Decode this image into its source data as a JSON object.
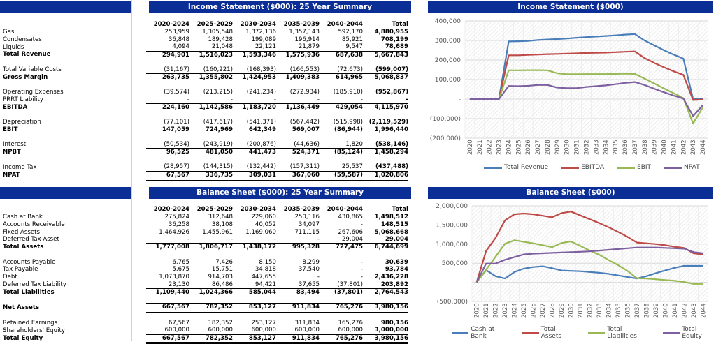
{
  "income": {
    "title": "Income Statement ($000): 25 Year Summary",
    "columns": [
      "2020-2024",
      "2025-2029",
      "2030-2034",
      "2035-2039",
      "2040-2044",
      "Total"
    ],
    "rows": [
      {
        "label": "Gas",
        "values": [
          "253,959",
          "1,305,548",
          "1,372,136",
          "1,357,143",
          "592,170",
          "4,880,955"
        ],
        "kind": "line"
      },
      {
        "label": "Condensates",
        "values": [
          "36,848",
          "189,428",
          "199,089",
          "196,914",
          "85,921",
          "708,199"
        ],
        "kind": "line"
      },
      {
        "label": "Liquids",
        "values": [
          "4,094",
          "21,048",
          "22,121",
          "21,879",
          "9,547",
          "78,689"
        ],
        "kind": "line"
      },
      {
        "label": "Total Revenue",
        "values": [
          "294,901",
          "1,516,023",
          "1,593,346",
          "1,575,936",
          "687,638",
          "5,667,843"
        ],
        "kind": "total"
      },
      {
        "label": "",
        "values": [
          "",
          "",
          "",
          "",
          "",
          ""
        ],
        "kind": "blank"
      },
      {
        "label": "Total Variable Costs",
        "values": [
          "(31,167)",
          "(160,221)",
          "(168,393)",
          "(166,553)",
          "(72,673)",
          "(599,007)"
        ],
        "kind": "line"
      },
      {
        "label": "Gross Margin",
        "values": [
          "263,735",
          "1,355,802",
          "1,424,953",
          "1,409,383",
          "614,965",
          "5,068,837"
        ],
        "kind": "total"
      },
      {
        "label": "",
        "values": [
          "",
          "",
          "",
          "",
          "",
          ""
        ],
        "kind": "blank"
      },
      {
        "label": "Operating Expenses",
        "values": [
          "(39,574)",
          "(213,215)",
          "(241,234)",
          "(272,934)",
          "(185,910)",
          "(952,867)"
        ],
        "kind": "line"
      },
      {
        "label": "PRRT Liability",
        "values": [
          "-",
          "-",
          "-",
          "-",
          "-",
          "-"
        ],
        "kind": "line"
      },
      {
        "label": "EBITDA",
        "values": [
          "224,160",
          "1,142,586",
          "1,183,720",
          "1,136,449",
          "429,054",
          "4,115,970"
        ],
        "kind": "total"
      },
      {
        "label": "",
        "values": [
          "",
          "",
          "",
          "",
          "",
          ""
        ],
        "kind": "blank"
      },
      {
        "label": "Depreciation",
        "values": [
          "(77,101)",
          "(417,617)",
          "(541,371)",
          "(567,442)",
          "(515,998)",
          "(2,119,529)"
        ],
        "kind": "line"
      },
      {
        "label": "EBIT",
        "values": [
          "147,059",
          "724,969",
          "642,349",
          "569,007",
          "(86,944)",
          "1,996,440"
        ],
        "kind": "total"
      },
      {
        "label": "",
        "values": [
          "",
          "",
          "",
          "",
          "",
          ""
        ],
        "kind": "blank"
      },
      {
        "label": "Interest",
        "values": [
          "(50,534)",
          "(243,919)",
          "(200,876)",
          "(44,636)",
          "1,820",
          "(538,146)"
        ],
        "kind": "line"
      },
      {
        "label": "NPBT",
        "values": [
          "96,525",
          "481,050",
          "441,473",
          "524,371",
          "(85,124)",
          "1,458,294"
        ],
        "kind": "total"
      },
      {
        "label": "",
        "values": [
          "",
          "",
          "",
          "",
          "",
          ""
        ],
        "kind": "blank"
      },
      {
        "label": "Income Tax",
        "values": [
          "(28,957)",
          "(144,315)",
          "(132,442)",
          "(157,311)",
          "25,537",
          "(437,488)"
        ],
        "kind": "line"
      },
      {
        "label": "NPAT",
        "values": [
          "67,567",
          "336,735",
          "309,031",
          "367,060",
          "(59,587)",
          "1,020,806"
        ],
        "kind": "total-dbl"
      }
    ]
  },
  "balance": {
    "title": "Balance Sheet ($000): 25 Year Summary",
    "columns": [
      "2020-2024",
      "2025-2029",
      "2030-2034",
      "2035-2039",
      "2040-2044",
      "Total"
    ],
    "rows": [
      {
        "label": "Cash at Bank",
        "values": [
          "275,824",
          "312,648",
          "229,060",
          "250,116",
          "430,865",
          "1,498,512"
        ],
        "kind": "line"
      },
      {
        "label": "Accounts Receivable",
        "values": [
          "36,258",
          "38,108",
          "40,052",
          "34,097",
          "-",
          "148,515"
        ],
        "kind": "line"
      },
      {
        "label": "Fixed Assets",
        "values": [
          "1,464,926",
          "1,455,961",
          "1,169,060",
          "711,115",
          "267,606",
          "5,068,668"
        ],
        "kind": "line"
      },
      {
        "label": "Deferred Tax Asset",
        "values": [
          "-",
          "-",
          "-",
          "-",
          "29,004",
          "29,004"
        ],
        "kind": "line"
      },
      {
        "label": "Total Assets",
        "values": [
          "1,777,008",
          "1,806,717",
          "1,438,172",
          "995,328",
          "727,475",
          "6,744,699"
        ],
        "kind": "total"
      },
      {
        "label": "",
        "values": [
          "",
          "",
          "",
          "",
          "",
          ""
        ],
        "kind": "blank"
      },
      {
        "label": "Accounts Payable",
        "values": [
          "6,765",
          "7,426",
          "8,150",
          "8,299",
          "-",
          "30,639"
        ],
        "kind": "line"
      },
      {
        "label": "Tax Payable",
        "values": [
          "5,675",
          "15,751",
          "34,818",
          "37,540",
          "-",
          "93,784"
        ],
        "kind": "line"
      },
      {
        "label": "Debt",
        "values": [
          "1,073,870",
          "914,703",
          "447,655",
          "-",
          "-",
          "2,436,228"
        ],
        "kind": "line"
      },
      {
        "label": "Deferred Tax Liability",
        "values": [
          "23,130",
          "86,486",
          "94,421",
          "37,655",
          "(37,801)",
          "203,892"
        ],
        "kind": "line"
      },
      {
        "label": "Total Liabilities",
        "values": [
          "1,109,440",
          "1,024,366",
          "585,044",
          "83,494",
          "(37,801)",
          "2,764,543"
        ],
        "kind": "total"
      },
      {
        "label": "",
        "values": [
          "",
          "",
          "",
          "",
          "",
          ""
        ],
        "kind": "blank"
      },
      {
        "label": "Net Assets",
        "values": [
          "667,567",
          "782,352",
          "853,127",
          "911,834",
          "765,276",
          "3,980,156"
        ],
        "kind": "total-dbl"
      },
      {
        "label": "",
        "values": [
          "",
          "",
          "",
          "",
          "",
          ""
        ],
        "kind": "blank"
      },
      {
        "label": "Retained Earnings",
        "values": [
          "67,567",
          "182,352",
          "253,127",
          "311,834",
          "165,276",
          "980,156"
        ],
        "kind": "line"
      },
      {
        "label": "Shareholders' Equity",
        "values": [
          "600,000",
          "600,000",
          "600,000",
          "600,000",
          "600,000",
          "3,000,000"
        ],
        "kind": "line"
      },
      {
        "label": "Total Equity",
        "values": [
          "667,567",
          "782,352",
          "853,127",
          "911,834",
          "765,276",
          "3,980,156"
        ],
        "kind": "total-dbl"
      }
    ]
  },
  "chart_data": [
    {
      "type": "line",
      "title": "Income Statement ($000)",
      "x": [
        2020,
        2021,
        2022,
        2023,
        2024,
        2025,
        2026,
        2027,
        2028,
        2029,
        2030,
        2031,
        2032,
        2033,
        2034,
        2035,
        2036,
        2037,
        2038,
        2039,
        2040,
        2041,
        2042,
        2043,
        2044
      ],
      "ylim": [
        -200000,
        400000
      ],
      "yticks": [
        400000,
        300000,
        200000,
        100000,
        0,
        -100000,
        -200000
      ],
      "ytick_labels": [
        "400,000",
        "300,000",
        "200,000",
        "100,000",
        "-",
        "(100,000)",
        "(200,000)"
      ],
      "grid": true,
      "legend": "bottom",
      "series": [
        {
          "name": "Total Revenue",
          "color": "#4a7ebb",
          "values": [
            0,
            0,
            0,
            0,
            295000,
            296000,
            298000,
            302000,
            305000,
            307000,
            310000,
            314000,
            317000,
            320000,
            323000,
            326000,
            330000,
            333000,
            300000,
            275000,
            250000,
            228000,
            207000,
            0,
            0
          ]
        },
        {
          "name": "EBITDA",
          "color": "#be4b48",
          "values": [
            0,
            0,
            0,
            0,
            224000,
            224000,
            226000,
            228000,
            230000,
            231000,
            233000,
            234000,
            236000,
            237000,
            238000,
            240000,
            242000,
            244000,
            210000,
            185000,
            163000,
            142000,
            124000,
            -5000,
            -2000
          ]
        },
        {
          "name": "EBIT",
          "color": "#98b954",
          "values": [
            0,
            0,
            0,
            0,
            147000,
            147000,
            148000,
            148000,
            147000,
            132000,
            127000,
            127000,
            128000,
            128000,
            128000,
            129000,
            130000,
            129000,
            105000,
            80000,
            55000,
            30000,
            5000,
            -125000,
            -42000
          ]
        },
        {
          "name": "NPAT",
          "color": "#7d60a0",
          "values": [
            0,
            0,
            0,
            0,
            67000,
            66000,
            68000,
            72000,
            72000,
            59000,
            56000,
            56000,
            62000,
            66000,
            70000,
            76000,
            83000,
            87000,
            72000,
            53000,
            35000,
            18000,
            3000,
            -87000,
            -31000
          ]
        }
      ]
    },
    {
      "type": "line",
      "title": "Balance Sheet ($000)",
      "x": [
        2020,
        2021,
        2022,
        2023,
        2024,
        2025,
        2026,
        2027,
        2028,
        2029,
        2030,
        2031,
        2032,
        2033,
        2034,
        2035,
        2036,
        2037,
        2038,
        2039,
        2040,
        2041,
        2042,
        2043,
        2044
      ],
      "ylim": [
        -500000,
        2000000
      ],
      "yticks": [
        2000000,
        1500000,
        1000000,
        500000,
        0,
        -500000
      ],
      "ytick_labels": [
        "2,000,000",
        "1,500,000",
        "1,000,000",
        "500,000",
        "-",
        "(500,000)"
      ],
      "grid": true,
      "legend": "bottom",
      "series": [
        {
          "name": "Cash at Bank",
          "color": "#4a7ebb",
          "values": [
            0,
            320000,
            160000,
            100000,
            270000,
            360000,
            400000,
            420000,
            370000,
            310000,
            300000,
            290000,
            270000,
            250000,
            220000,
            180000,
            140000,
            100000,
            160000,
            240000,
            310000,
            380000,
            430000,
            430000,
            430000
          ]
        },
        {
          "name": "Total Assets",
          "color": "#be4b48",
          "values": [
            0,
            820000,
            1160000,
            1620000,
            1780000,
            1800000,
            1780000,
            1740000,
            1700000,
            1810000,
            1850000,
            1750000,
            1650000,
            1550000,
            1440000,
            1320000,
            1190000,
            1040000,
            1020000,
            1000000,
            970000,
            930000,
            900000,
            760000,
            730000
          ]
        },
        {
          "name": "Total Liabilities",
          "color": "#98b954",
          "values": [
            0,
            330000,
            670000,
            1010000,
            1100000,
            1060000,
            1020000,
            970000,
            920000,
            1030000,
            1070000,
            950000,
            830000,
            720000,
            580000,
            450000,
            300000,
            110000,
            100000,
            80000,
            60000,
            40000,
            10000,
            -40000,
            -40000
          ]
        },
        {
          "name": "Total Equity",
          "color": "#7d60a0",
          "values": [
            0,
            490000,
            490000,
            590000,
            660000,
            730000,
            750000,
            760000,
            770000,
            780000,
            790000,
            800000,
            810000,
            830000,
            850000,
            870000,
            890000,
            910000,
            910000,
            910000,
            900000,
            890000,
            880000,
            790000,
            760000
          ]
        }
      ]
    }
  ]
}
